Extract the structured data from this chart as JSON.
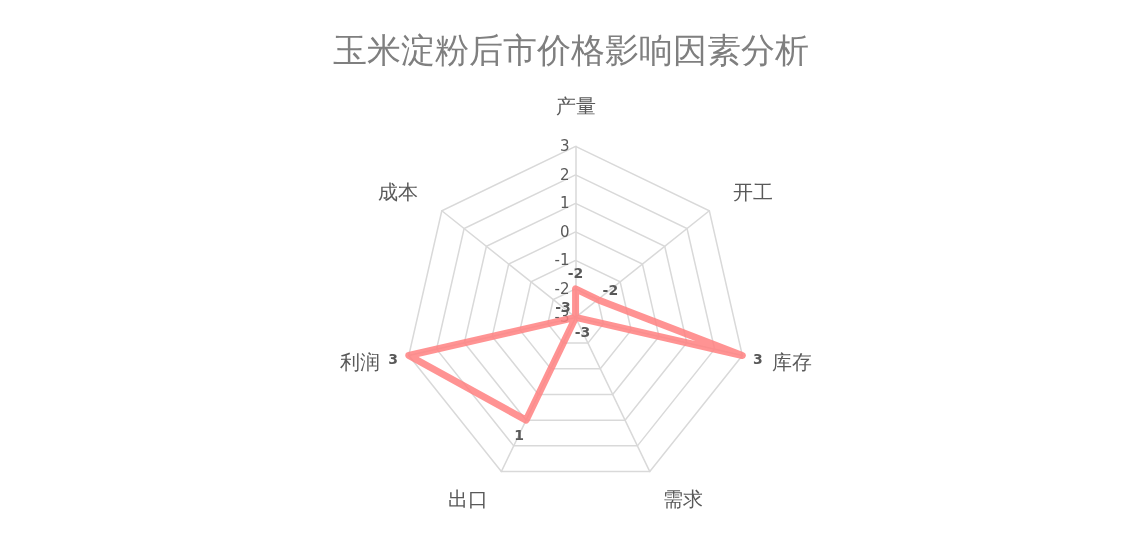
{
  "chart_data": {
    "type": "radar",
    "title": "玉米淀粉后市价格影响因素分析",
    "categories": [
      "产量",
      "开工",
      "库存",
      "需求",
      "出口",
      "利润",
      "成本"
    ],
    "series": [
      {
        "color": "#ff8080",
        "values": [
          -2,
          -2,
          3,
          -3,
          1,
          3,
          -3
        ]
      }
    ],
    "ylim": [
      -3,
      3
    ],
    "yticks": [
      -3,
      -2,
      -1,
      0,
      1,
      2,
      3
    ],
    "grid": true,
    "data_labels": true,
    "marker": "none",
    "line_style": "solid"
  }
}
